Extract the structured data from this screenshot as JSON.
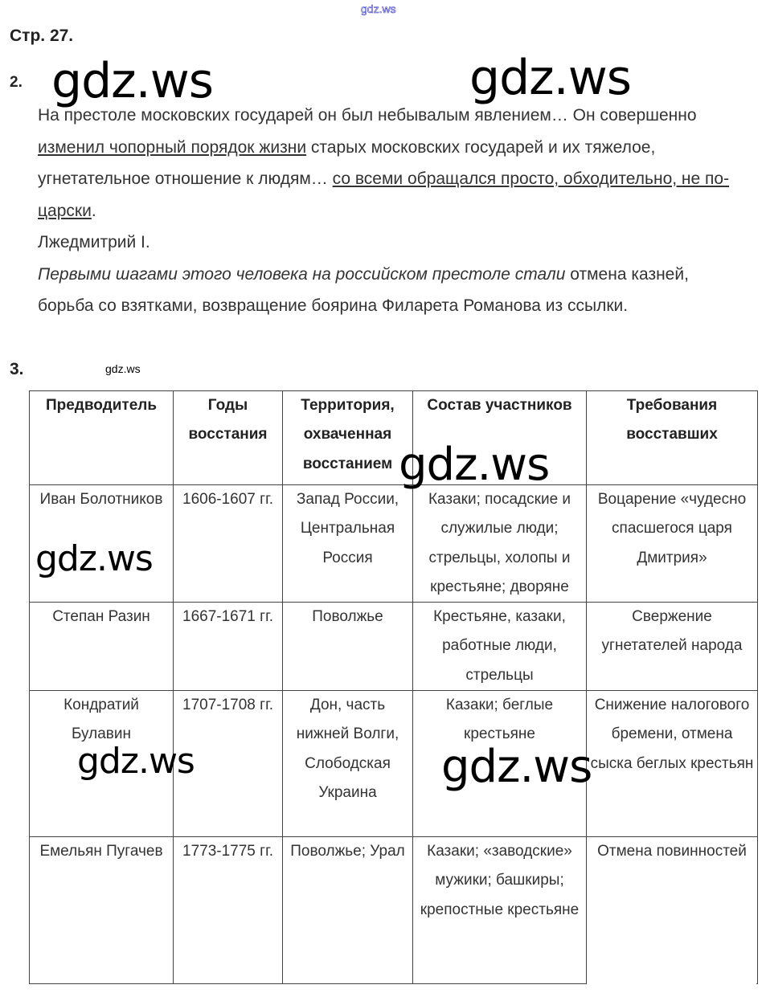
{
  "watermark_small": "gdz.ws",
  "watermark": "gdz.ws",
  "page_number": "Стр. 27.",
  "task2": {
    "number": "2.",
    "segments": [
      {
        "text": "На престоле московских государей он был небывалым явлением… Он совершенно ",
        "style": ""
      },
      {
        "text": "изменил чопорный порядок жизни",
        "style": "u"
      },
      {
        "text": " старых московских государей и их тяжелое, угнетательное отношение к людям… ",
        "style": ""
      },
      {
        "text": "со всеми обращался просто, обходительно, не по-царски",
        "style": "u"
      },
      {
        "text": ".",
        "style": ""
      }
    ],
    "answer": "Лжедмитрий I.",
    "italic_lead": "Первыми шагами этого человека на российском престоле стали",
    "continuation": " отмена казней, борьба со взятками, возвращение боярина Филарета Романова из ссылки."
  },
  "task3": {
    "number": "3.",
    "label": "gdz.ws",
    "headers": [
      "Предводитель",
      "Годы восстания",
      "Территория, охваченная восстанием",
      "Состав участников",
      "Требования восставших"
    ],
    "rows": [
      [
        "Иван Болотников",
        "1606-1607 гг.",
        "Запад России, Центральная Россия",
        "Казаки; посадские и служилые люди; стрельцы, холопы и крестьяне; дворяне",
        "Воцарение «чудесно спасшегося царя Дмитрия»"
      ],
      [
        "Степан Разин",
        "1667-1671 гг.",
        "Поволжье",
        "Крестьяне, казаки, работные люди, стрельцы",
        "Свержение угнетателей народа"
      ],
      [
        "Кондратий Булавин",
        "1707-1708 гг.",
        "Дон, часть нижней Волги, Слободская Украина",
        "Казаки; беглые крестьяне",
        "Снижение налогового бремени, отмена сыска беглых крестьян"
      ],
      [
        "Емельян Пугачев",
        "1773-1775 гг.",
        "Поволжье; Урал",
        "Казаки; «заводские» мужики; башкиры; крепостные крестьяне",
        "Отмена повинностей"
      ]
    ]
  }
}
